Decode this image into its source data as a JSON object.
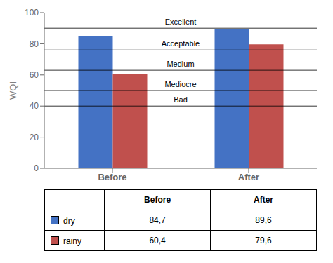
{
  "chart_data": {
    "type": "bar",
    "ylabel": "WQI",
    "categories": [
      "Before",
      "After"
    ],
    "series": [
      {
        "name": "dry",
        "color": "#4472C4",
        "values": [
          84.7,
          89.6
        ],
        "value_labels": [
          "84,7",
          "89,6"
        ]
      },
      {
        "name": "rainy",
        "color": "#C0504D",
        "values": [
          60.4,
          79.6
        ],
        "value_labels": [
          "60,4",
          "79,6"
        ]
      }
    ],
    "ylim": [
      0,
      100
    ],
    "yticks": [
      0,
      20,
      40,
      60,
      80,
      100
    ],
    "grid": false,
    "annotations": [
      {
        "y": 90,
        "text": "Excellent"
      },
      {
        "y": 76,
        "text": "Acceptable"
      },
      {
        "y": 63,
        "text": "Medium"
      },
      {
        "y": 50,
        "text": "Mediocre"
      },
      {
        "y": 40,
        "text": "Bad"
      }
    ]
  }
}
